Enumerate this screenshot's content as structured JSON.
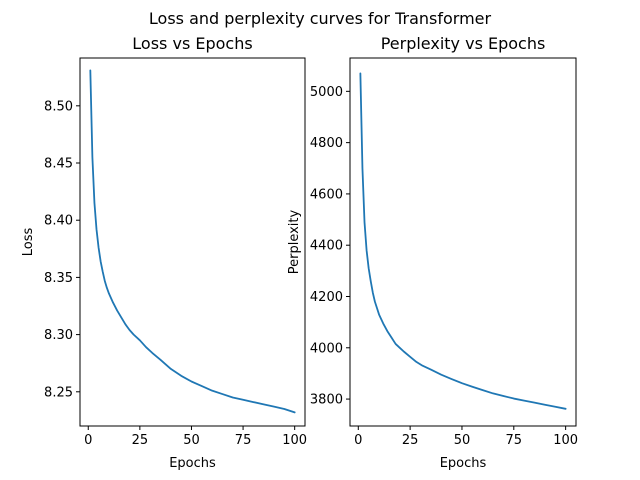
{
  "figure_title": "Loss and perplexity curves for Transformer",
  "chart_data": [
    {
      "type": "line",
      "title": "Loss vs Epochs",
      "xlabel": "Epochs",
      "ylabel": "Loss",
      "xlim": [
        -4,
        105
      ],
      "ylim": [
        8.2201,
        8.5418
      ],
      "xticks": [
        0,
        25,
        50,
        75,
        100
      ],
      "xtick_labels": [
        "0",
        "25",
        "50",
        "75",
        "100"
      ],
      "yticks": [
        8.25,
        8.3,
        8.35,
        8.4,
        8.45,
        8.5
      ],
      "ytick_labels": [
        "8.25",
        "8.30",
        "8.35",
        "8.40",
        "8.45",
        "8.50"
      ],
      "grid": false,
      "series": [
        {
          "color": "#1f77b4",
          "x": [
            1,
            2,
            3,
            4,
            5,
            6,
            7,
            8,
            9,
            10,
            12,
            14,
            16,
            18,
            20,
            22,
            25,
            28,
            31,
            35,
            40,
            45,
            50,
            55,
            60,
            65,
            70,
            75,
            80,
            85,
            90,
            95,
            100
          ],
          "y": [
            8.531,
            8.455,
            8.415,
            8.392,
            8.376,
            8.364,
            8.355,
            8.347,
            8.341,
            8.336,
            8.328,
            8.321,
            8.315,
            8.309,
            8.304,
            8.3,
            8.295,
            8.289,
            8.284,
            8.278,
            8.27,
            8.264,
            8.259,
            8.255,
            8.251,
            8.248,
            8.245,
            8.243,
            8.241,
            8.239,
            8.237,
            8.235,
            8.232
          ]
        }
      ]
    },
    {
      "type": "line",
      "title": "Perplexity vs Epochs",
      "xlabel": "Epochs",
      "ylabel": "Perplexity",
      "xlim": [
        -4,
        105
      ],
      "ylim": [
        3695,
        5130
      ],
      "xticks": [
        0,
        25,
        50,
        75,
        100
      ],
      "xtick_labels": [
        "0",
        "25",
        "50",
        "75",
        "100"
      ],
      "yticks": [
        3800,
        4000,
        4200,
        4400,
        4600,
        4800,
        5000
      ],
      "ytick_labels": [
        "3800",
        "4000",
        "4200",
        "4400",
        "4600",
        "4800",
        "5000"
      ],
      "grid": false,
      "series": [
        {
          "color": "#1f77b4",
          "x": [
            1,
            2,
            3,
            4,
            5,
            6,
            7,
            8,
            9,
            10,
            12,
            14,
            16,
            18,
            20,
            22,
            25,
            28,
            31,
            35,
            40,
            45,
            50,
            55,
            60,
            65,
            70,
            75,
            80,
            85,
            90,
            95,
            100
          ],
          "y": [
            5070,
            4700,
            4490,
            4380,
            4310,
            4260,
            4215,
            4180,
            4155,
            4130,
            4095,
            4065,
            4040,
            4015,
            4000,
            3985,
            3965,
            3945,
            3930,
            3915,
            3895,
            3878,
            3862,
            3848,
            3835,
            3822,
            3812,
            3802,
            3794,
            3786,
            3778,
            3770,
            3762
          ]
        }
      ]
    }
  ]
}
